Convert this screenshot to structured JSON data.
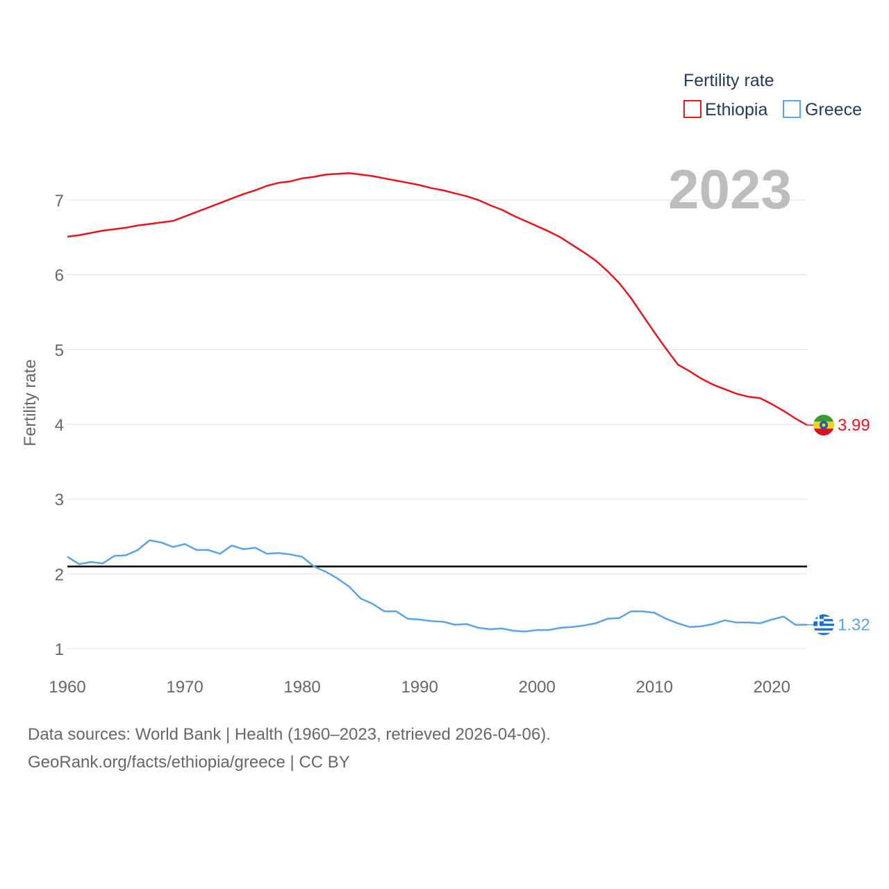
{
  "chart_data": {
    "type": "line",
    "ylabel": "Fertility rate",
    "xlabel": "",
    "xlim": [
      1960,
      2023
    ],
    "ylim": [
      1,
      7
    ],
    "x_ticks": [
      1960,
      1970,
      1980,
      1990,
      2000,
      2010,
      2020
    ],
    "y_ticks": [
      1,
      2,
      3,
      4,
      5,
      6,
      7
    ],
    "grid": true,
    "reference_line": {
      "y": 2.1,
      "color": "#000000"
    },
    "year_label": "2023",
    "legend": {
      "title": "Fertility rate",
      "position": "top-right"
    },
    "series": [
      {
        "name": "Ethiopia",
        "color": "#e8141c",
        "end_label": "3.99",
        "x": [
          1960,
          1961,
          1962,
          1963,
          1964,
          1965,
          1966,
          1967,
          1968,
          1969,
          1970,
          1971,
          1972,
          1973,
          1974,
          1975,
          1976,
          1977,
          1978,
          1979,
          1980,
          1981,
          1982,
          1983,
          1984,
          1985,
          1986,
          1987,
          1988,
          1989,
          1990,
          1991,
          1992,
          1993,
          1994,
          1995,
          1996,
          1997,
          1998,
          1999,
          2000,
          2001,
          2002,
          2003,
          2004,
          2005,
          2006,
          2007,
          2008,
          2009,
          2010,
          2011,
          2012,
          2013,
          2014,
          2015,
          2016,
          2017,
          2018,
          2019,
          2020,
          2021,
          2022,
          2023
        ],
        "values": [
          6.51,
          6.53,
          6.56,
          6.59,
          6.61,
          6.63,
          6.66,
          6.68,
          6.7,
          6.72,
          6.78,
          6.84,
          6.9,
          6.96,
          7.02,
          7.08,
          7.13,
          7.19,
          7.23,
          7.25,
          7.29,
          7.31,
          7.34,
          7.35,
          7.36,
          7.34,
          7.32,
          7.29,
          7.26,
          7.23,
          7.2,
          7.16,
          7.13,
          7.09,
          7.05,
          7.0,
          6.93,
          6.87,
          6.79,
          6.72,
          6.65,
          6.58,
          6.5,
          6.4,
          6.3,
          6.19,
          6.05,
          5.89,
          5.69,
          5.46,
          5.23,
          5.01,
          4.8,
          4.71,
          4.61,
          4.53,
          4.47,
          4.41,
          4.37,
          4.35,
          4.27,
          4.18,
          4.08,
          3.99
        ]
      },
      {
        "name": "Greece",
        "color": "#5aa3e6",
        "end_label": "1.32",
        "x": [
          1960,
          1961,
          1962,
          1963,
          1964,
          1965,
          1966,
          1967,
          1968,
          1969,
          1970,
          1971,
          1972,
          1973,
          1974,
          1975,
          1976,
          1977,
          1978,
          1979,
          1980,
          1981,
          1982,
          1983,
          1984,
          1985,
          1986,
          1987,
          1988,
          1989,
          1990,
          1991,
          1992,
          1993,
          1994,
          1995,
          1996,
          1997,
          1998,
          1999,
          2000,
          2001,
          2002,
          2003,
          2004,
          2005,
          2006,
          2007,
          2008,
          2009,
          2010,
          2011,
          2012,
          2013,
          2014,
          2015,
          2016,
          2017,
          2018,
          2019,
          2020,
          2021,
          2022,
          2023
        ],
        "values": [
          2.23,
          2.13,
          2.16,
          2.14,
          2.24,
          2.25,
          2.32,
          2.45,
          2.42,
          2.36,
          2.4,
          2.32,
          2.32,
          2.27,
          2.38,
          2.33,
          2.35,
          2.27,
          2.28,
          2.26,
          2.23,
          2.1,
          2.03,
          1.94,
          1.83,
          1.67,
          1.6,
          1.5,
          1.5,
          1.4,
          1.39,
          1.37,
          1.36,
          1.32,
          1.33,
          1.28,
          1.26,
          1.27,
          1.24,
          1.23,
          1.25,
          1.25,
          1.28,
          1.29,
          1.31,
          1.34,
          1.4,
          1.41,
          1.5,
          1.5,
          1.48,
          1.4,
          1.34,
          1.29,
          1.3,
          1.33,
          1.38,
          1.35,
          1.35,
          1.34,
          1.39,
          1.43,
          1.32,
          1.32
        ]
      }
    ]
  },
  "footer": {
    "source": "Data sources: World Bank | Health (1960–2023, retrieved 2026-04-06).",
    "credit": "GeoRank.org/facts/ethiopia/greece | CC BY"
  }
}
